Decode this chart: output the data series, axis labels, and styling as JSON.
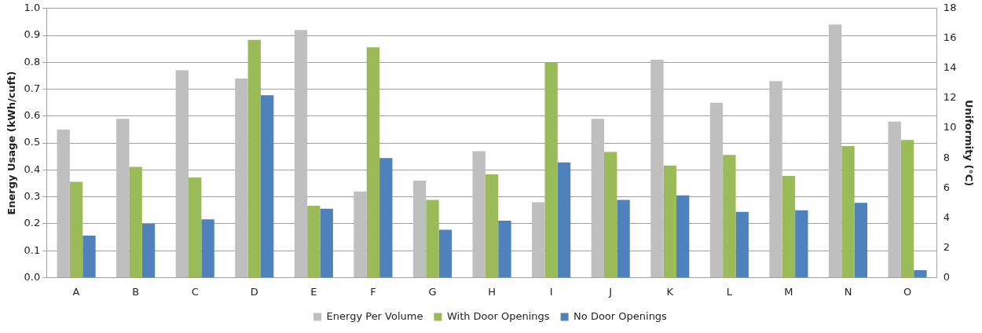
{
  "chart_data": {
    "type": "bar",
    "ylabel": "Energy Usage (kWh/cuft)",
    "y2label": "Uniformity (°C)",
    "categories": [
      "A",
      "B",
      "C",
      "D",
      "E",
      "F",
      "G",
      "H",
      "I",
      "J",
      "K",
      "L",
      "M",
      "N",
      "O"
    ],
    "series": [
      {
        "name": "Energy Per Volume",
        "color": "#bfbfbf",
        "values": [
          0.55,
          0.59,
          0.77,
          0.74,
          0.92,
          0.32,
          0.36,
          0.47,
          0.28,
          0.59,
          0.81,
          0.65,
          0.73,
          0.94,
          0.58
        ]
      },
      {
        "name": "With Door Openings",
        "color": "#9bbb59",
        "axis": "y2",
        "values": [
          6.4,
          7.4,
          6.7,
          15.9,
          4.8,
          15.4,
          5.2,
          6.9,
          14.4,
          8.4,
          7.5,
          8.2,
          6.8,
          8.8,
          9.2
        ]
      },
      {
        "name": "No Door Openings",
        "color": "#4f81bd",
        "axis": "y2",
        "values": [
          2.8,
          3.6,
          3.9,
          12.2,
          4.6,
          8.0,
          3.2,
          3.8,
          7.7,
          5.2,
          5.5,
          4.4,
          4.5,
          5.0,
          0.5
        ]
      }
    ],
    "ylim": [
      0,
      1
    ],
    "yticks": [
      {
        "value": 0,
        "label": "0.0"
      },
      0.1,
      0.2,
      0.3,
      0.4,
      0.5,
      0.6,
      0.7,
      0.8,
      0.9,
      {
        "value": 1,
        "label": "1.0"
      }
    ],
    "y2lim": [
      0,
      18
    ],
    "y2ticks": [
      0,
      2,
      4,
      6,
      8,
      10,
      12,
      14,
      16,
      18
    ],
    "grid": "y",
    "legend": "bottom"
  }
}
